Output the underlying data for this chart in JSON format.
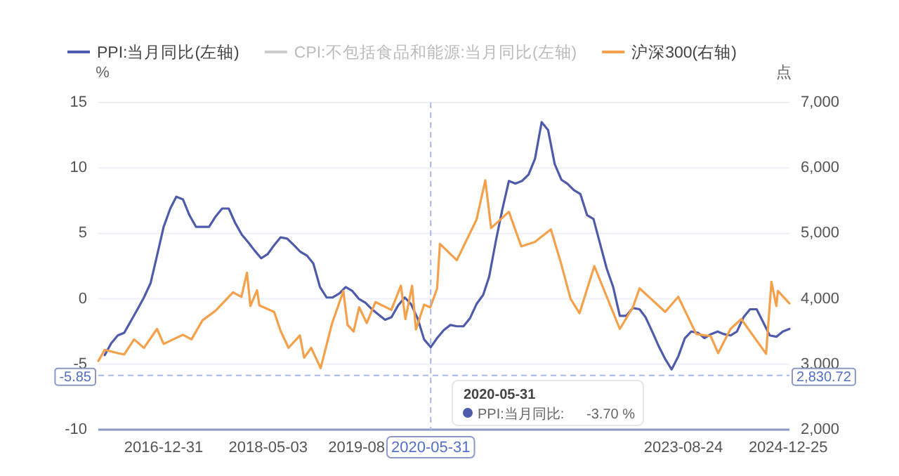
{
  "chart_data": {
    "type": "line",
    "ylabel": "%",
    "y2label": "点",
    "legend": "top",
    "grid": "y",
    "xlim": [
      "2016-03-01",
      "2024-12-31"
    ],
    "xticks": [
      {
        "value": "2016-12-31",
        "label": "2016-12-31"
      },
      {
        "value": "2018-05-03",
        "label": "2018-05-03"
      },
      {
        "value": "2019-06-20",
        "label": "2019-08"
      },
      {
        "value": "2023-08-24",
        "label": "2023-08-24"
      },
      {
        "value": "2024-12-25",
        "label": "2024-12-25"
      }
    ],
    "ylim": [
      -10,
      15
    ],
    "yticks": [
      -10,
      -5,
      0,
      5,
      10,
      15
    ],
    "y2lim": [
      2000,
      7000
    ],
    "y2ticks": [
      {
        "value": 2000,
        "label": "2,000"
      },
      {
        "value": 3000,
        "label": "3,000"
      },
      {
        "value": 4000,
        "label": "4,000"
      },
      {
        "value": 5000,
        "label": "5,000"
      },
      {
        "value": 6000,
        "label": "6,000"
      },
      {
        "value": 7000,
        "label": "7,000"
      }
    ],
    "ref_lines": [
      {
        "axis": "y",
        "value": -5.85,
        "label": "-5.85",
        "color": "#a9b8e8",
        "line_style": "dashed"
      },
      {
        "axis": "x",
        "value": "2020-05-31",
        "label": "2020-05-31",
        "color": "#a9b8e8",
        "line_style": "dashed"
      }
    ],
    "annotations": [
      "2020-05-31",
      "PPI:当月同比:",
      "-3.70 %",
      "2,830.72"
    ],
    "series": [
      {
        "name": "PPI:当月同比(左轴)",
        "color": "#4e5bab",
        "x": [
          "2016-03-31",
          "2016-04-30",
          "2016-05-31",
          "2016-06-30",
          "2016-07-31",
          "2016-08-31",
          "2016-09-30",
          "2016-10-31",
          "2016-11-30",
          "2016-12-31",
          "2017-01-31",
          "2017-02-28",
          "2017-03-31",
          "2017-04-30",
          "2017-05-31",
          "2017-06-30",
          "2017-07-31",
          "2017-08-31",
          "2017-09-30",
          "2017-10-31",
          "2017-11-30",
          "2017-12-31",
          "2018-01-31",
          "2018-02-28",
          "2018-03-31",
          "2018-04-30",
          "2018-05-31",
          "2018-06-30",
          "2018-07-31",
          "2018-08-31",
          "2018-09-30",
          "2018-10-31",
          "2018-11-30",
          "2018-12-31",
          "2019-01-31",
          "2019-02-28",
          "2019-03-31",
          "2019-04-30",
          "2019-05-31",
          "2019-06-30",
          "2019-07-31",
          "2019-08-31",
          "2019-09-30",
          "2019-10-31",
          "2019-11-30",
          "2019-12-31",
          "2020-01-31",
          "2020-02-29",
          "2020-03-31",
          "2020-04-30",
          "2020-05-31",
          "2020-06-30",
          "2020-07-31",
          "2020-08-31",
          "2020-09-30",
          "2020-10-31",
          "2020-11-30",
          "2020-12-31",
          "2021-01-31",
          "2021-02-28",
          "2021-03-31",
          "2021-04-30",
          "2021-05-31",
          "2021-06-30",
          "2021-07-31",
          "2021-08-31",
          "2021-09-30",
          "2021-10-31",
          "2021-11-30",
          "2021-12-31",
          "2022-01-31",
          "2022-02-28",
          "2022-03-31",
          "2022-04-30",
          "2022-05-31",
          "2022-06-30",
          "2022-07-31",
          "2022-08-31",
          "2022-09-30",
          "2022-10-31",
          "2022-11-30",
          "2022-12-31",
          "2023-01-31",
          "2023-02-28",
          "2023-03-31",
          "2023-04-30",
          "2023-05-31",
          "2023-06-30",
          "2023-07-31",
          "2023-08-31",
          "2023-09-30",
          "2023-10-31",
          "2023-11-30",
          "2023-12-31",
          "2024-01-31",
          "2024-02-29",
          "2024-03-31",
          "2024-04-30",
          "2024-05-31",
          "2024-06-30",
          "2024-07-31",
          "2024-08-31",
          "2024-09-30",
          "2024-10-31",
          "2024-11-30",
          "2024-12-31"
        ],
        "values": [
          -4.3,
          -3.4,
          -2.8,
          -2.6,
          -1.7,
          -0.8,
          0.1,
          1.2,
          3.3,
          5.5,
          6.9,
          7.8,
          7.6,
          6.4,
          5.5,
          5.5,
          5.5,
          6.3,
          6.9,
          6.9,
          5.8,
          4.9,
          4.3,
          3.7,
          3.1,
          3.4,
          4.1,
          4.7,
          4.6,
          4.1,
          3.6,
          3.3,
          2.7,
          0.9,
          0.1,
          0.1,
          0.4,
          0.9,
          0.6,
          0.0,
          -0.3,
          -0.8,
          -1.2,
          -1.6,
          -1.4,
          -0.5,
          0.1,
          -0.4,
          -1.5,
          -3.1,
          -3.7,
          -3.0,
          -2.4,
          -2.0,
          -2.1,
          -2.1,
          -1.5,
          -0.4,
          0.3,
          1.7,
          4.4,
          6.8,
          9.0,
          8.8,
          9.0,
          9.5,
          10.7,
          13.5,
          12.9,
          10.3,
          9.1,
          8.8,
          8.3,
          8.0,
          6.4,
          6.1,
          4.2,
          2.3,
          0.9,
          -1.3,
          -1.3,
          -0.7,
          -0.8,
          -1.4,
          -2.5,
          -3.6,
          -4.6,
          -5.4,
          -4.4,
          -3.0,
          -2.5,
          -2.6,
          -3.0,
          -2.7,
          -2.5,
          -2.7,
          -2.8,
          -2.5,
          -1.4,
          -0.8,
          -0.8,
          -1.8,
          -2.8,
          -2.9,
          -2.5,
          -2.3
        ]
      },
      {
        "name": "CPI:不包括食品和能源:当月同比(左轴)",
        "color": "#cccccc"
      },
      {
        "name": "沪深300(右轴)",
        "color": "#f5a04a",
        "axis": "y2",
        "x": [
          "2016-03-01",
          "2016-03-31",
          "2016-05-31",
          "2016-06-30",
          "2016-08-15",
          "2016-09-30",
          "2016-11-30",
          "2016-12-31",
          "2017-03-31",
          "2017-05-10",
          "2017-06-30",
          "2017-08-31",
          "2017-11-20",
          "2017-12-29",
          "2018-01-24",
          "2018-02-09",
          "2018-03-12",
          "2018-03-23",
          "2018-05-31",
          "2018-06-30",
          "2018-08-06",
          "2018-09-28",
          "2018-10-18",
          "2018-11-20",
          "2019-01-03",
          "2019-02-25",
          "2019-04-19",
          "2019-05-09",
          "2019-06-06",
          "2019-07-02",
          "2019-08-06",
          "2019-09-16",
          "2019-11-29",
          "2020-01-13",
          "2020-02-03",
          "2020-03-05",
          "2020-03-23",
          "2020-04-30",
          "2020-05-29",
          "2020-06-30",
          "2020-07-13",
          "2020-09-30",
          "2020-12-31",
          "2021-02-10",
          "2021-03-09",
          "2021-05-31",
          "2021-07-28",
          "2021-09-30",
          "2021-12-13",
          "2022-01-28",
          "2022-03-15",
          "2022-04-26",
          "2022-07-04",
          "2022-10-31",
          "2022-12-31",
          "2023-01-31",
          "2023-05-31",
          "2023-07-31",
          "2023-10-23",
          "2023-12-29",
          "2024-02-02",
          "2024-03-31",
          "2024-05-20",
          "2024-09-13",
          "2024-10-08",
          "2024-10-31",
          "2024-11-07",
          "2024-12-31"
        ],
        "values": [
          3050,
          3220,
          3170,
          3150,
          3380,
          3250,
          3540,
          3310,
          3450,
          3380,
          3670,
          3820,
          4100,
          4030,
          4400,
          3890,
          4130,
          3900,
          3800,
          3510,
          3250,
          3440,
          3100,
          3250,
          2940,
          3620,
          4120,
          3600,
          3500,
          3870,
          3630,
          3950,
          3830,
          4200,
          3690,
          4200,
          3530,
          3910,
          3870,
          4160,
          4840,
          4590,
          5210,
          5810,
          5080,
          5330,
          4800,
          4870,
          5060,
          4560,
          4000,
          3780,
          4500,
          3540,
          3870,
          4160,
          3800,
          4030,
          3460,
          3430,
          3170,
          3540,
          3690,
          3160,
          4260,
          3890,
          4120,
          3930
        ]
      }
    ]
  }
}
